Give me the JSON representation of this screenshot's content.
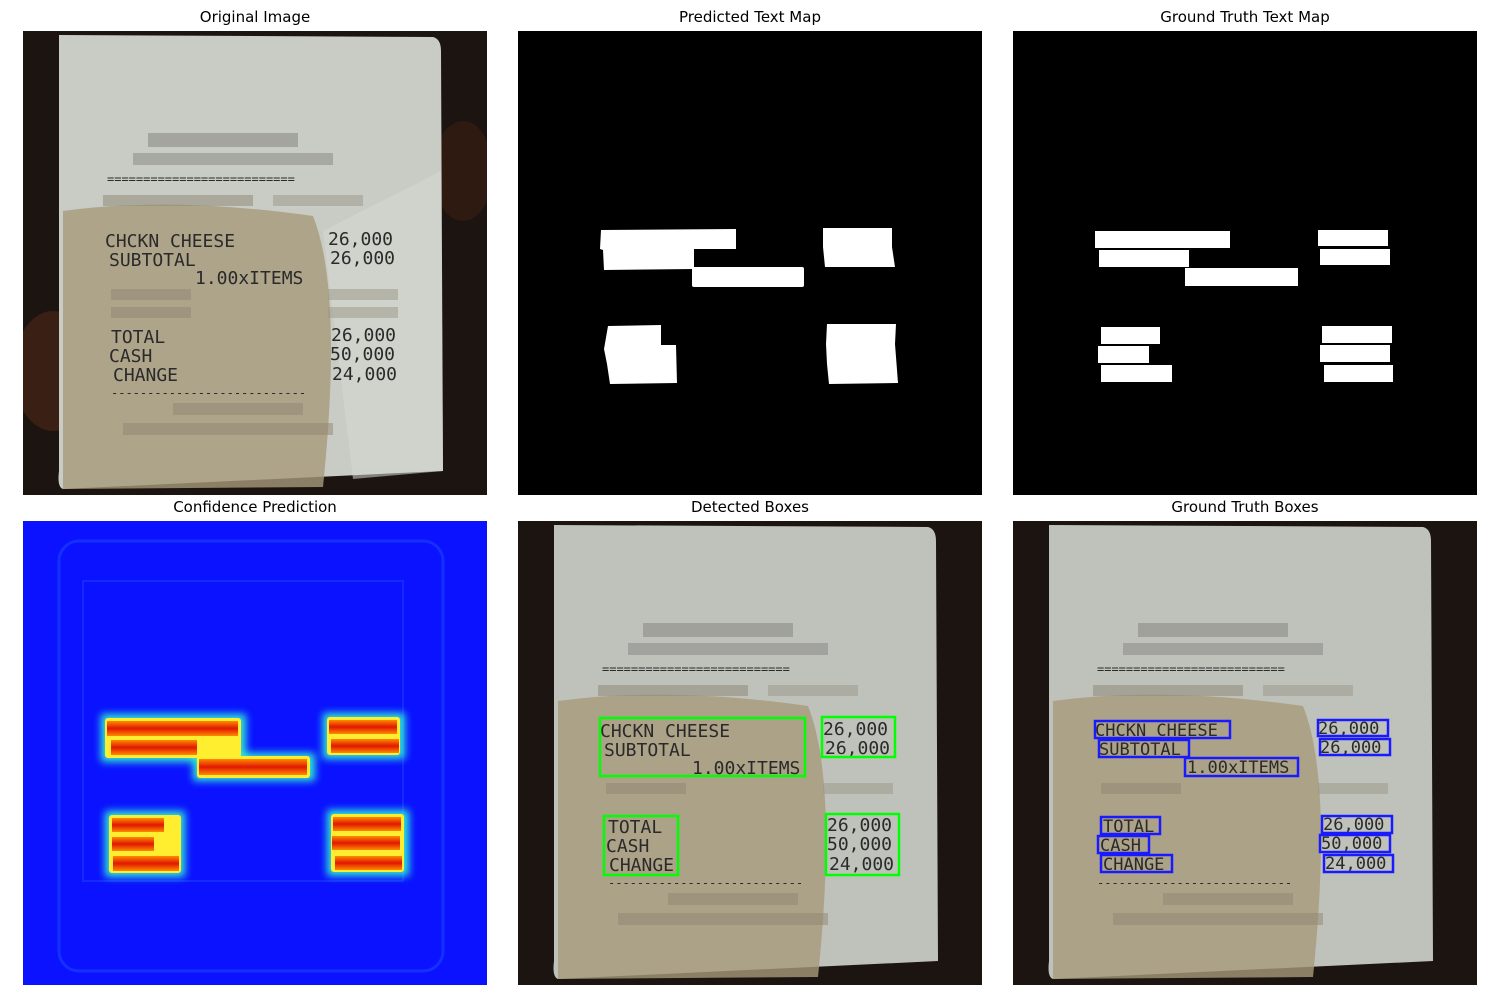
{
  "panels": {
    "original": {
      "title": "Original Image"
    },
    "predicted_map": {
      "title": "Predicted Text Map"
    },
    "gt_map": {
      "title": "Ground Truth Text Map"
    },
    "confidence": {
      "title": "Confidence Prediction"
    },
    "detected": {
      "title": "Detected Boxes"
    },
    "gt_boxes": {
      "title": "Ground Truth Boxes"
    }
  },
  "receipt": {
    "separator_top": "==========================",
    "separator_bottom": "---------------------------",
    "lines": [
      {
        "label": "CHCKN CHEESE",
        "value": "26,000"
      },
      {
        "label": "SUBTOTAL",
        "value": "26,000"
      },
      {
        "label": "1.00xITEMS",
        "value": ""
      },
      {
        "label": "TOTAL",
        "value": "26,000"
      },
      {
        "label": "CASH",
        "value": "50,000"
      },
      {
        "label": "CHANGE",
        "value": "24,000"
      }
    ]
  },
  "colors": {
    "detected_box": "#00ff00",
    "gt_box": "#1a1aff",
    "confidence_bg": "#0a12ff",
    "map_text": "#ffffff",
    "map_bg": "#000000"
  }
}
